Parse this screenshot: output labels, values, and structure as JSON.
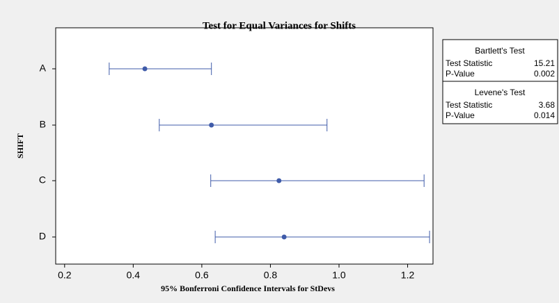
{
  "chart_data": {
    "type": "interval",
    "title": "Test for Equal Variances for Shifts",
    "xlabel": "95% Bonferroni Confidence Intervals for StDevs",
    "ylabel": "SHIFT",
    "categories": [
      "A",
      "B",
      "C",
      "D"
    ],
    "center": [
      0.434,
      0.628,
      0.825,
      0.84
    ],
    "lower": [
      0.33,
      0.476,
      0.626,
      0.639
    ],
    "upper": [
      0.628,
      0.965,
      1.248,
      1.264
    ],
    "color": "#3f5ba9",
    "xlim": [
      0.174,
      1.274
    ],
    "xticks": [
      0.2,
      0.4,
      0.6,
      0.8,
      {
        "value": 1,
        "label": "1.0"
      },
      1.2
    ],
    "tests": [
      {
        "title": "Bartlett's Test",
        "rows": [
          [
            "Test Statistic",
            15.21
          ],
          [
            "P-Value",
            0.002
          ]
        ]
      },
      {
        "title": "Levene's Test",
        "rows": [
          [
            "Test Statistic",
            3.68
          ],
          [
            "P-Value",
            0.014
          ]
        ]
      }
    ]
  }
}
